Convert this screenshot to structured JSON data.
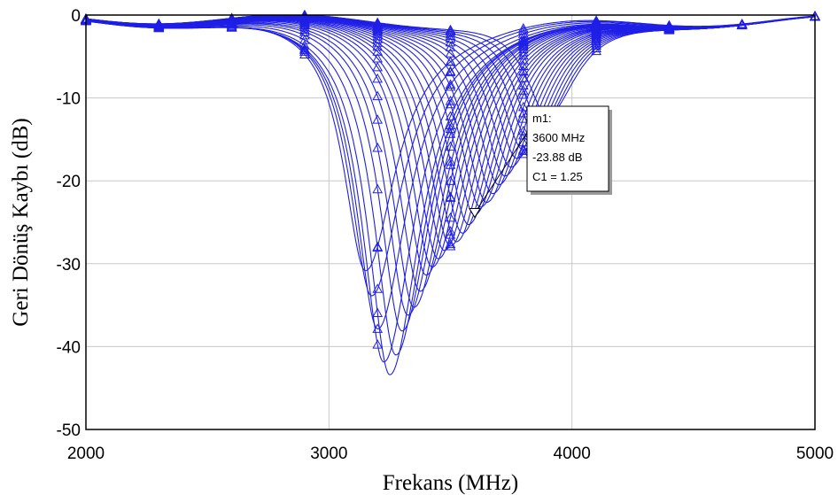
{
  "chart_data": {
    "type": "line",
    "xlabel": "Frekans (MHz)",
    "ylabel": "Geri Dönüş Kaybı (dB)",
    "xlim": [
      2000,
      5000
    ],
    "ylim": [
      -50,
      0
    ],
    "x_ticks": [
      "2000",
      "3000",
      "4000",
      "5000"
    ],
    "y_ticks": [
      "0",
      "-10",
      "-20",
      "-30",
      "-40",
      "-50"
    ],
    "grid": true,
    "line_color": "#1f1fe6",
    "series_family": {
      "note": "parametric sweep of C1, each curve is a resonant dip",
      "curves": [
        {
          "center": 3150,
          "depth": -31
        },
        {
          "center": 3175,
          "depth": -34
        },
        {
          "center": 3200,
          "depth": -38
        },
        {
          "center": 3225,
          "depth": -42
        },
        {
          "center": 3250,
          "depth": -43.5
        },
        {
          "center": 3275,
          "depth": -41
        },
        {
          "center": 3300,
          "depth": -38
        },
        {
          "center": 3325,
          "depth": -36
        },
        {
          "center": 3350,
          "depth": -35
        },
        {
          "center": 3375,
          "depth": -33
        },
        {
          "center": 3400,
          "depth": -31
        },
        {
          "center": 3425,
          "depth": -30
        },
        {
          "center": 3450,
          "depth": -29
        },
        {
          "center": 3475,
          "depth": -28
        },
        {
          "center": 3500,
          "depth": -27.5
        },
        {
          "center": 3525,
          "depth": -27
        },
        {
          "center": 3550,
          "depth": -26
        },
        {
          "center": 3575,
          "depth": -25
        },
        {
          "center": 3600,
          "depth": -23.88
        },
        {
          "center": 3625,
          "depth": -23
        },
        {
          "center": 3650,
          "depth": -22.5
        },
        {
          "center": 3675,
          "depth": -21.5
        },
        {
          "center": 3700,
          "depth": -20.5
        },
        {
          "center": 3725,
          "depth": -19.5
        },
        {
          "center": 3750,
          "depth": -18.5
        },
        {
          "center": 3775,
          "depth": -17.5
        },
        {
          "center": 3800,
          "depth": -16.5
        },
        {
          "center": 3825,
          "depth": -15.5
        },
        {
          "center": 3850,
          "depth": -14.5
        },
        {
          "center": 3875,
          "depth": -13.5
        },
        {
          "center": 3900,
          "depth": -12.5
        }
      ]
    },
    "marker": {
      "name": "m1:",
      "freq_text": "3600 MHz",
      "value_text": "-23.88 dB",
      "param_text": "C1 = 1.25",
      "x": 3600,
      "y": -23.88
    }
  }
}
